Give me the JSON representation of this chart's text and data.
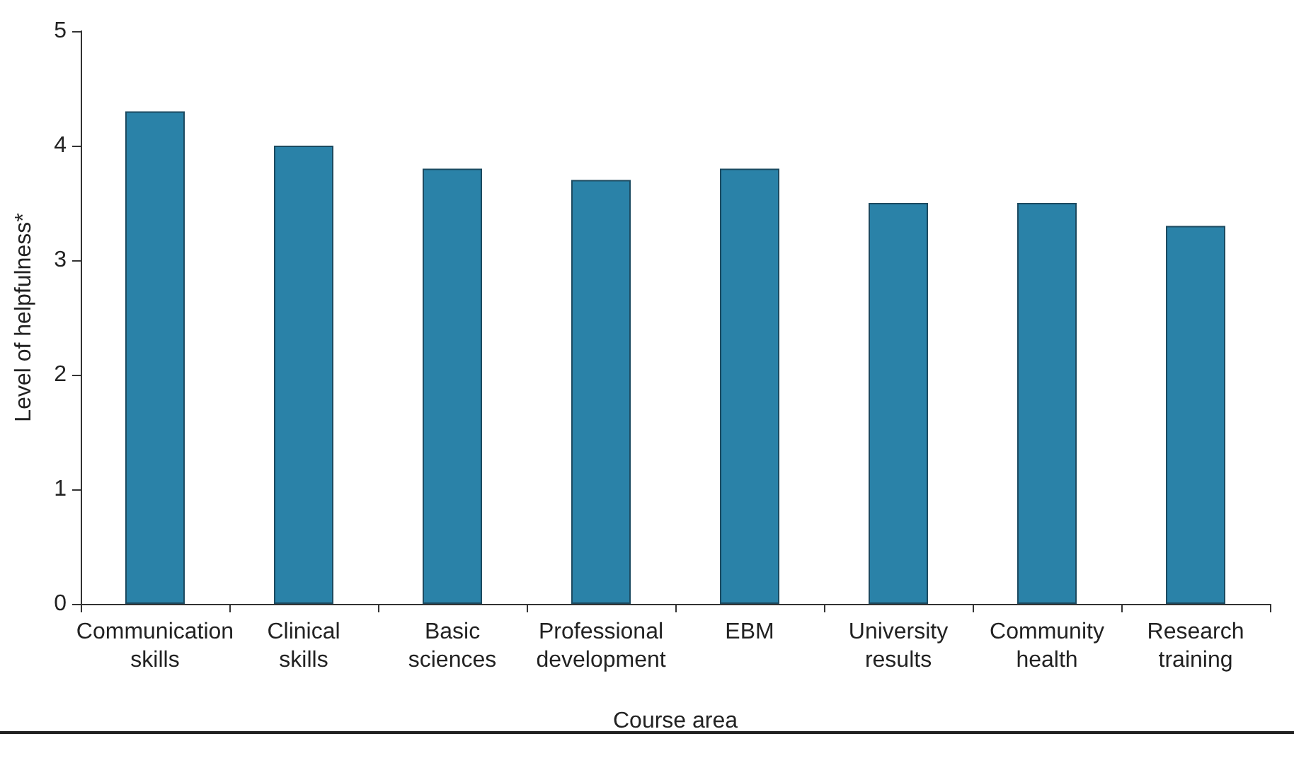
{
  "chart_data": {
    "type": "bar",
    "xlabel": "Course area",
    "ylabel": "Level of helpfulness*",
    "categories": [
      "Communication skills",
      "Clinical skills",
      "Basic sciences",
      "Professional development",
      "EBM",
      "University results",
      "Community health",
      "Research training"
    ],
    "values": [
      4.3,
      4.0,
      3.8,
      3.7,
      3.8,
      3.5,
      3.5,
      3.3
    ],
    "color": "#2a82a8",
    "ylim": [
      0,
      5
    ],
    "yticks": [
      0,
      1,
      2,
      3,
      4,
      5
    ]
  }
}
